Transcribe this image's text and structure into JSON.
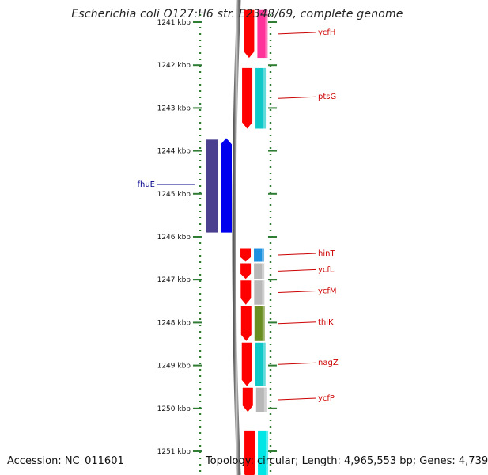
{
  "header": {
    "title": "Escherichia coli O127:H6 str. E2348/69, complete genome"
  },
  "footer": {
    "accession": "Accession: NC_011601",
    "topology": "Topology: circular;",
    "length": "Length: 4,965,553 bp;",
    "genes": "Genes: 4,739"
  },
  "axis": {
    "ticks": [
      {
        "kbp": 1241,
        "label": "1241 kbp"
      },
      {
        "kbp": 1242,
        "label": "1242 kbp"
      },
      {
        "kbp": 1243,
        "label": "1243 kbp"
      },
      {
        "kbp": 1244,
        "label": "1244 kbp"
      },
      {
        "kbp": 1245,
        "label": "1245 kbp"
      },
      {
        "kbp": 1246,
        "label": "1246 kbp"
      },
      {
        "kbp": 1247,
        "label": "1247 kbp"
      },
      {
        "kbp": 1248,
        "label": "1248 kbp"
      },
      {
        "kbp": 1249,
        "label": "1249 kbp"
      },
      {
        "kbp": 1250,
        "label": "1250 kbp"
      },
      {
        "kbp": 1251,
        "label": "1251 kbp"
      }
    ]
  },
  "genes_forward": [
    {
      "name": "ycfH",
      "start_kbp": 1240.7,
      "end_kbp": 1241.85,
      "cog_color": "#ff3399"
    },
    {
      "name": "ptsG",
      "start_kbp": 1242.05,
      "end_kbp": 1243.5,
      "cog_color": "#10c8c8"
    },
    {
      "name": "hinT",
      "start_kbp": 1246.25,
      "end_kbp": 1246.6,
      "cog_color": "#1e90e0"
    },
    {
      "name": "ycfL",
      "start_kbp": 1246.6,
      "end_kbp": 1247.0,
      "cog_color": "#b8b8b8"
    },
    {
      "name": "ycfM",
      "start_kbp": 1247.0,
      "end_kbp": 1247.6,
      "cog_color": "#b8b8b8"
    },
    {
      "name": "thiK",
      "start_kbp": 1247.6,
      "end_kbp": 1248.45,
      "cog_color": "#6b8e23"
    },
    {
      "name": "nagZ",
      "start_kbp": 1248.45,
      "end_kbp": 1249.5,
      "cog_color": "#10c8c8"
    },
    {
      "name": "ycfP",
      "start_kbp": 1249.5,
      "end_kbp": 1250.1,
      "cog_color": "#b8b8b8"
    },
    {
      "name": "",
      "start_kbp": 1250.5,
      "end_kbp": 1251.7,
      "cog_color": "#00e5e5"
    }
  ],
  "genes_reverse": [
    {
      "name": "fhuE",
      "start_kbp": 1243.7,
      "end_kbp": 1245.9,
      "cog_color": "#0000ee",
      "shadow_color": "#4b3f8f"
    }
  ],
  "colors": {
    "forward_strand": "#ff0000",
    "reverse_label": "#00008b",
    "forward_label": "#cc0000",
    "tick": "#2e7d32",
    "backbone": "#8a8a8a"
  }
}
